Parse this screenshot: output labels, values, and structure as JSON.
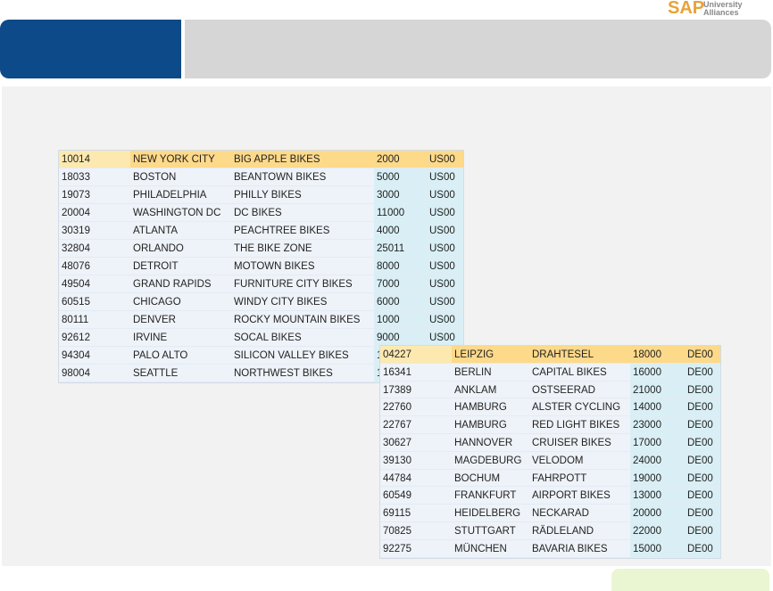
{
  "logo": {
    "brand": "SAP",
    "subtitle": [
      "University",
      "Alliances"
    ]
  },
  "table1": {
    "rows": [
      [
        "10014",
        "NEW YORK CITY",
        "BIG APPLE BIKES",
        "2000",
        "US00"
      ],
      [
        "18033",
        "BOSTON",
        "BEANTOWN BIKES",
        "5000",
        "US00"
      ],
      [
        "19073",
        "PHILADELPHIA",
        "PHILLY BIKES",
        "3000",
        "US00"
      ],
      [
        "20004",
        "WASHINGTON DC",
        "DC BIKES",
        "11000",
        "US00"
      ],
      [
        "30319",
        "ATLANTA",
        "PEACHTREE BIKES",
        "4000",
        "US00"
      ],
      [
        "32804",
        "ORLANDO",
        "THE BIKE ZONE",
        "25011",
        "US00"
      ],
      [
        "48076",
        "DETROIT",
        "MOTOWN BIKES",
        "8000",
        "US00"
      ],
      [
        "49504",
        "GRAND RAPIDS",
        "FURNITURE CITY BIKES",
        "7000",
        "US00"
      ],
      [
        "60515",
        "CHICAGO",
        "WINDY CITY BIKES",
        "6000",
        "US00"
      ],
      [
        "80111",
        "DENVER",
        "ROCKY MOUNTAIN BIKES",
        "1000",
        "US00"
      ],
      [
        "92612",
        "IRVINE",
        "SOCAL BIKES",
        "9000",
        "US00"
      ],
      [
        "94304",
        "PALO ALTO",
        "SILICON VALLEY BIKES",
        "1"
      ],
      [
        "98004",
        "SEATTLE",
        "NORTHWEST BIKES",
        "1"
      ]
    ]
  },
  "table2": {
    "rows": [
      [
        "04227",
        "LEIPZIG",
        "DRAHTESEL",
        "18000",
        "DE00"
      ],
      [
        "16341",
        "BERLIN",
        "CAPITAL BIKES",
        "16000",
        "DE00"
      ],
      [
        "17389",
        "ANKLAM",
        "OSTSEERAD",
        "21000",
        "DE00"
      ],
      [
        "22760",
        "HAMBURG",
        "ALSTER CYCLING",
        "14000",
        "DE00"
      ],
      [
        "22767",
        "HAMBURG",
        "RED LIGHT BIKES",
        "23000",
        "DE00"
      ],
      [
        "30627",
        "HANNOVER",
        "CRUISER BIKES",
        "17000",
        "DE00"
      ],
      [
        "39130",
        "MAGDEBURG",
        "VELODOM",
        "24000",
        "DE00"
      ],
      [
        "44784",
        "BOCHUM",
        "FAHRPOTT",
        "19000",
        "DE00"
      ],
      [
        "60549",
        "FRANKFURT",
        "AIRPORT BIKES",
        "13000",
        "DE00"
      ],
      [
        "69115",
        "HEIDELBERG",
        "NECKARAD",
        "20000",
        "DE00"
      ],
      [
        "70825",
        "STUTTGART",
        "RÄDLELAND",
        "22000",
        "DE00"
      ],
      [
        "92275",
        "MÜNCHEN",
        "BAVARIA BIKES",
        "15000",
        "DE00"
      ]
    ]
  }
}
